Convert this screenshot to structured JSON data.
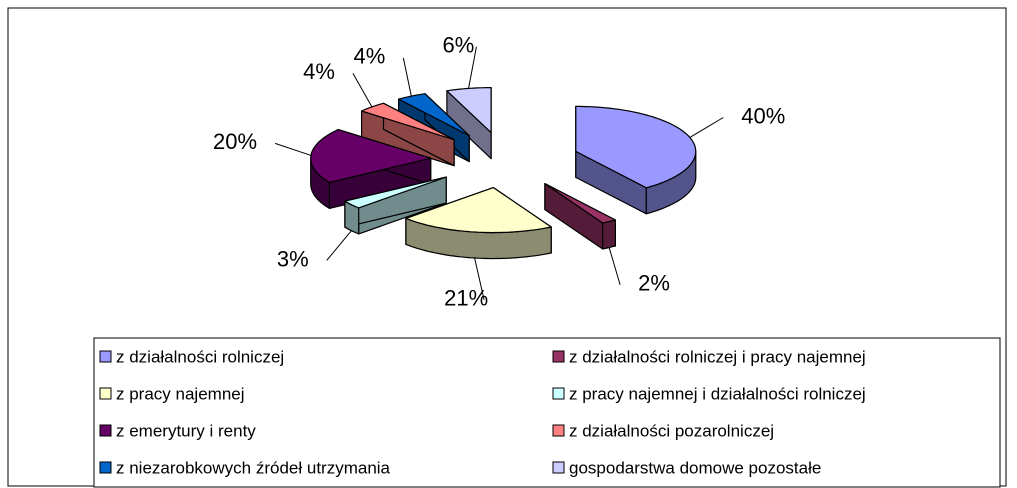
{
  "chart_data": {
    "type": "pie3d",
    "categories": [
      "z działalności rolniczej",
      "z działalności rolniczej i pracy najemnej",
      "z pracy najemnej",
      "z pracy najemnej i działalności rolniczej",
      "z emerytury i renty",
      "z działalności pozarolniczej",
      "z niezarobkowych źródeł utrzymania",
      "gospodarstwa domowe pozostałe"
    ],
    "values": [
      40,
      2,
      21,
      3,
      20,
      4,
      4,
      6
    ],
    "value_labels": [
      "40%",
      "2%",
      "21%",
      "3%",
      "20%",
      "4%",
      "4%",
      "6%"
    ],
    "colors": [
      "#9999ff",
      "#993366",
      "#ffffcc",
      "#ccffff",
      "#660066",
      "#ff8080",
      "#0066cc",
      "#ccccff"
    ],
    "legend": "bottom"
  }
}
